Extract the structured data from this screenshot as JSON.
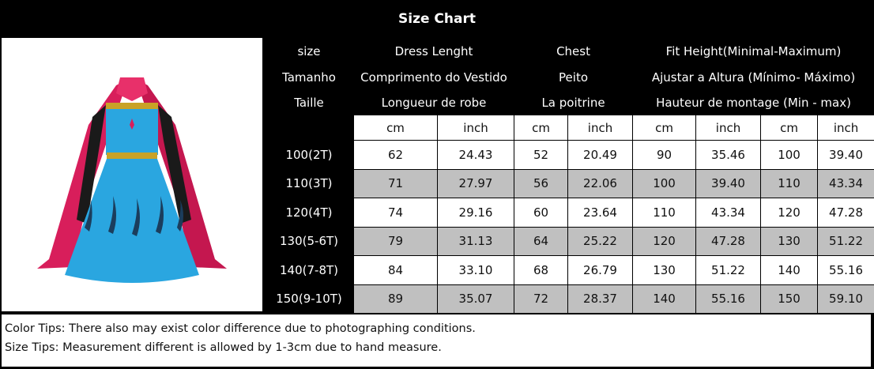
{
  "title": "Size Chart",
  "header_rows": [
    [
      "size",
      "Dress Lenght",
      "Chest",
      "Fit Height(Minimal-Maximum)"
    ],
    [
      "Tamanho",
      "Comprimento do Vestido",
      "Peito",
      "Ajustar a Altura (Mínimo- Máximo)"
    ],
    [
      "Taille",
      "Longueur de robe",
      "La poitrine",
      "Hauteur de montage (Min - max)"
    ]
  ],
  "units": [
    "cm",
    "inch",
    "cm",
    "inch",
    "cm",
    "inch",
    "cm",
    "inch"
  ],
  "rows": [
    {
      "size": "100(2T)",
      "values": [
        "62",
        "24.43",
        "52",
        "20.49",
        "90",
        "35.46",
        "100",
        "39.40"
      ]
    },
    {
      "size": "110(3T)",
      "values": [
        "71",
        "27.97",
        "56",
        "22.06",
        "100",
        "39.40",
        "110",
        "43.34"
      ]
    },
    {
      "size": "120(4T)",
      "values": [
        "74",
        "29.16",
        "60",
        "23.64",
        "110",
        "43.34",
        "120",
        "47.28"
      ]
    },
    {
      "size": "130(5-6T)",
      "values": [
        "79",
        "31.13",
        "64",
        "25.22",
        "120",
        "47.28",
        "130",
        "51.22"
      ]
    },
    {
      "size": "140(7-8T)",
      "values": [
        "84",
        "33.10",
        "68",
        "26.79",
        "130",
        "51.22",
        "140",
        "55.16"
      ]
    },
    {
      "size": "150(9-10T)",
      "values": [
        "89",
        "35.07",
        "72",
        "28.37",
        "140",
        "55.16",
        "150",
        "59.10"
      ]
    }
  ],
  "notes": [
    "Color Tips: There also may exist color difference due to photographing conditions.",
    "Size Tips: Measurement different is allowed by 1-3cm due to hand measure."
  ],
  "colors": {
    "header_bg": "#000000",
    "stripe": "#c0c0c0",
    "dress_blue": "#2aa6e0",
    "cape_pink": "#e0235f"
  }
}
